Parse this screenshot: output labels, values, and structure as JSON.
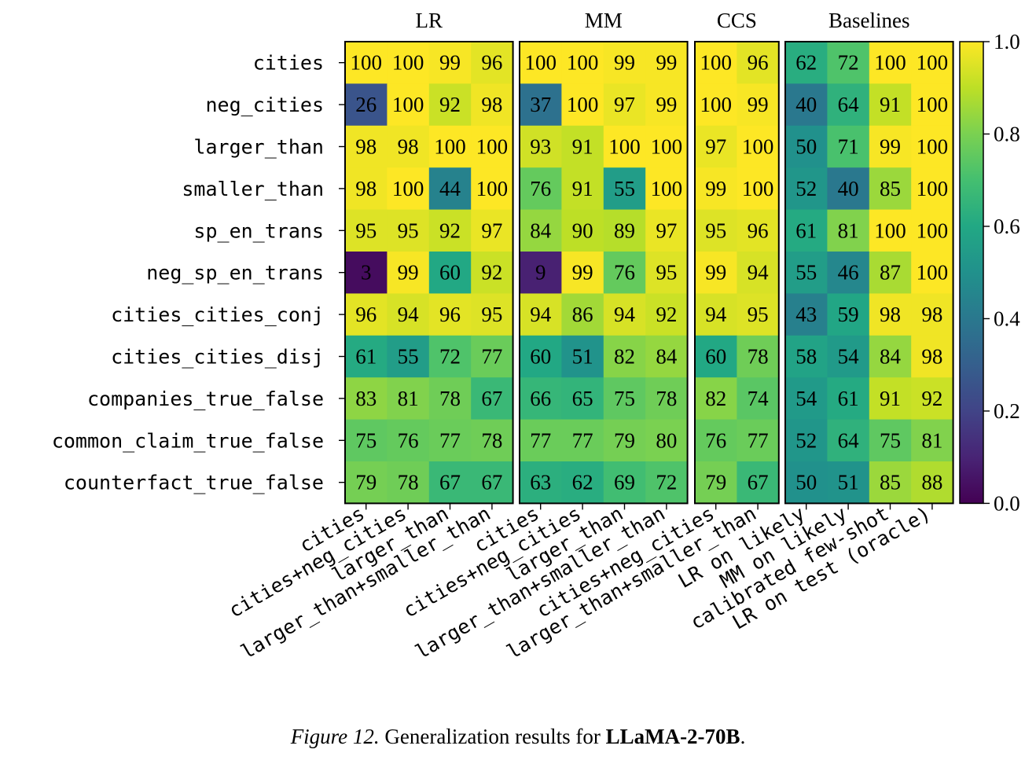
{
  "chart_data": {
    "type": "heatmap",
    "rows": [
      "cities",
      "neg_cities",
      "larger_than",
      "smaller_than",
      "sp_en_trans",
      "neg_sp_en_trans",
      "cities_cities_conj",
      "cities_cities_disj",
      "companies_true_false",
      "common_claim_true_false",
      "counterfact_true_false"
    ],
    "groups": [
      {
        "name": "LR",
        "columns": [
          "cities",
          "cities+neg_cities",
          "larger_than",
          "larger_than+smaller_than"
        ],
        "values": [
          [
            100,
            100,
            99,
            96
          ],
          [
            26,
            100,
            92,
            98
          ],
          [
            98,
            98,
            100,
            100
          ],
          [
            98,
            100,
            44,
            100
          ],
          [
            95,
            95,
            92,
            97
          ],
          [
            3,
            99,
            60,
            92
          ],
          [
            96,
            94,
            96,
            95
          ],
          [
            61,
            55,
            72,
            77
          ],
          [
            83,
            81,
            78,
            67
          ],
          [
            75,
            76,
            77,
            78
          ],
          [
            79,
            78,
            67,
            67
          ]
        ]
      },
      {
        "name": "MM",
        "columns": [
          "cities",
          "cities+neg_cities",
          "larger_than",
          "larger_than+smaller_than"
        ],
        "values": [
          [
            100,
            100,
            99,
            99
          ],
          [
            37,
            100,
            97,
            99
          ],
          [
            93,
            91,
            100,
            100
          ],
          [
            76,
            91,
            55,
            100
          ],
          [
            84,
            90,
            89,
            97
          ],
          [
            9,
            99,
            76,
            95
          ],
          [
            94,
            86,
            94,
            92
          ],
          [
            60,
            51,
            82,
            84
          ],
          [
            66,
            65,
            75,
            78
          ],
          [
            77,
            77,
            79,
            80
          ],
          [
            63,
            62,
            69,
            72
          ]
        ]
      },
      {
        "name": "CCS",
        "columns": [
          "cities+neg_cities",
          "larger_than+smaller_than"
        ],
        "values": [
          [
            100,
            96
          ],
          [
            100,
            99
          ],
          [
            97,
            100
          ],
          [
            99,
            100
          ],
          [
            95,
            96
          ],
          [
            99,
            94
          ],
          [
            94,
            95
          ],
          [
            60,
            78
          ],
          [
            82,
            74
          ],
          [
            76,
            77
          ],
          [
            79,
            67
          ]
        ]
      },
      {
        "name": "Baselines",
        "columns": [
          "LR on likely",
          "MM on likely",
          "calibrated few-shot",
          "LR on test (oracle)"
        ],
        "values": [
          [
            62,
            72,
            100,
            100
          ],
          [
            40,
            64,
            91,
            100
          ],
          [
            50,
            71,
            99,
            100
          ],
          [
            52,
            40,
            85,
            100
          ],
          [
            61,
            81,
            100,
            100
          ],
          [
            55,
            46,
            87,
            100
          ],
          [
            43,
            59,
            98,
            98
          ],
          [
            58,
            54,
            84,
            98
          ],
          [
            54,
            61,
            91,
            92
          ],
          [
            52,
            64,
            75,
            81
          ],
          [
            50,
            51,
            85,
            88
          ]
        ]
      }
    ],
    "colorbar": {
      "ticks": [
        "0.0",
        "0.2",
        "0.4",
        "0.6",
        "0.8",
        "1.0"
      ],
      "range": [
        0,
        1
      ],
      "colormap": "viridis"
    }
  },
  "caption": {
    "label": "Figure 12.",
    "text": "Generalization results for",
    "model": "LLaMA-2-70B",
    "end": "."
  }
}
